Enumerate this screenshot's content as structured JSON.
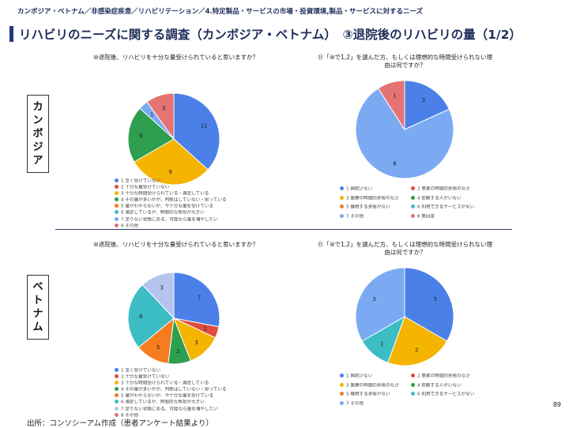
{
  "breadcrumb": "カンボジア・ベトナム／非感染症疾患／リハビリテーション／4.特定製品・サービスの市場・投資環境,製品・サービスに対するニーズ",
  "title": "リハビリのニーズに関する調査（カンボジア・ベトナム）　③退院後のリハビリの量（1/2）",
  "countries": {
    "cambodia": [
      "カ",
      "ン",
      "ボ",
      "ジ",
      "ア"
    ],
    "vietnam": [
      "ベ",
      "ト",
      "ナ",
      "ム"
    ]
  },
  "colors": {
    "blue": "#4a80e8",
    "red": "#e04b3c",
    "yellow": "#f4b400",
    "green": "#2e9e4f",
    "orange": "#f57c1f",
    "teal": "#3cbdc4",
    "lightblue": "#7baaf3",
    "lavender": "#b6c3ee",
    "salmon": "#e57373",
    "title": "#1f2d5a"
  },
  "chart_data": [
    {
      "type": "pie",
      "title": "⑩退院後、リハビリを十分な量受けられていると思いますか？",
      "labels": [
        "1 全く受けていない",
        "2 十分な量受けていない",
        "3 十分な時間受けられている・満足している",
        "4 その量が多いかが、判断はしていない・思っている",
        "5 量がわからないが、今十分な量を受けている",
        "6 満足しているが、時間的な負担が大きい",
        "7 足りない状態にある、可能なら量を増やしたい",
        "8 その他"
      ],
      "values": [
        11,
        0,
        9,
        6,
        0,
        0,
        1,
        3
      ],
      "colors": [
        "#4a80e8",
        "#e04b3c",
        "#f4b400",
        "#2e9e4f",
        "#f57c1f",
        "#3cbdc4",
        "#7baaf3",
        "#e57373"
      ]
    },
    {
      "type": "pie",
      "title": "⑪「⑩で1,2」を選んだ方、もしくは理想的な時間受けられない理由は何ですか？",
      "labels": [
        "1 病院少ない",
        "2 患者の時間的余裕のなさ",
        "3 医療の時間的余裕のなさ",
        "4 依頼する人がいない",
        "5 継続する余裕がない",
        "6 利用できるサービスがない",
        "7 その他",
        "8 無回答"
      ],
      "values": [
        2,
        0,
        0,
        0,
        0,
        0,
        8,
        1
      ],
      "colors": [
        "#4a80e8",
        "#e04b3c",
        "#f4b400",
        "#2e9e4f",
        "#f57c1f",
        "#3cbdc4",
        "#7baaf3",
        "#e57373"
      ]
    },
    {
      "type": "pie",
      "title": "⑩退院後、リハビリを十分な量受けられていると思いますか？",
      "labels": [
        "1 全く受けていない",
        "2 十分な量受けていない",
        "3 十分な時間受けられている・満足している",
        "4 その量が多いかが、判断はしていない・思っている",
        "5 量がわからないが、今十分な量を受けている",
        "6 満足しているが、時間的な負担が大きい",
        "7 足りない状態にある、可能なら量を増やしたい",
        "8 その他"
      ],
      "values": [
        7,
        1,
        3,
        2,
        3,
        6,
        3,
        0
      ],
      "colors": [
        "#4a80e8",
        "#e04b3c",
        "#f4b400",
        "#2e9e4f",
        "#f57c1f",
        "#3cbdc4",
        "#b6c3ee",
        "#e57373"
      ]
    },
    {
      "type": "pie",
      "title": "⑪「⑩で1,2」を選んだ方、もしくは理想的な時間受けられない理由は何ですか？",
      "labels": [
        "1 病院少ない",
        "2 患者の時間的余裕のなさ",
        "3 医療の時間的余裕のなさ",
        "4 依頼する人がいない",
        "5 継続する余裕がない",
        "6 利用できるサービスがない",
        "7 その他"
      ],
      "values": [
        3,
        0,
        2,
        0,
        0,
        1,
        3
      ],
      "colors": [
        "#4a80e8",
        "#e04b3c",
        "#f4b400",
        "#2e9e4f",
        "#f57c1f",
        "#3cbdc4",
        "#7baaf3"
      ]
    }
  ],
  "page_number": "89",
  "source": "出所：コンソシーアム作成（患者アンケート結果より）"
}
